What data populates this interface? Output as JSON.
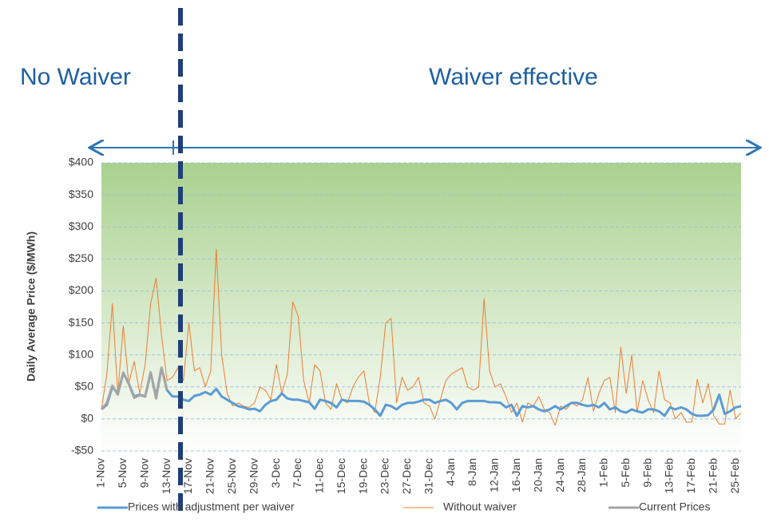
{
  "chart_data": {
    "type": "line",
    "annotations": [
      "No Waiver",
      "Waiver effective"
    ],
    "ylabel": "Daily Average Price ($/MWh)",
    "ylim": [
      -50,
      400
    ],
    "yticks": [
      {
        "value": -50,
        "label": "-$50"
      },
      {
        "value": 0,
        "label": "$0"
      },
      {
        "value": 50,
        "label": "$50"
      },
      {
        "value": 100,
        "label": "$100"
      },
      {
        "value": 150,
        "label": "$150"
      },
      {
        "value": 200,
        "label": "$200"
      },
      {
        "value": 250,
        "label": "$250"
      },
      {
        "value": 300,
        "label": "$300"
      },
      {
        "value": 350,
        "label": "$350"
      },
      {
        "value": 400,
        "label": "$400"
      }
    ],
    "grid": true,
    "legend": "bottom",
    "categories": [
      "1-Nov",
      null,
      null,
      null,
      "5-Nov",
      null,
      null,
      null,
      "9-Nov",
      null,
      null,
      null,
      "13-Nov",
      null,
      null,
      null,
      "17-Nov",
      null,
      null,
      null,
      "21-Nov",
      null,
      null,
      null,
      "25-Nov",
      null,
      null,
      null,
      "29-Nov",
      null,
      null,
      null,
      "3-Dec",
      null,
      null,
      null,
      "7-Dec",
      null,
      null,
      null,
      "11-Dec",
      null,
      null,
      null,
      "15-Dec",
      null,
      null,
      null,
      "19-Dec",
      null,
      null,
      null,
      "23-Dec",
      null,
      null,
      null,
      "27-Dec",
      null,
      null,
      null,
      "31-Dec",
      null,
      null,
      null,
      "4-Jan",
      null,
      null,
      null,
      "8-Jan",
      null,
      null,
      null,
      "12-Jan",
      null,
      null,
      null,
      "16-Jan",
      null,
      null,
      null,
      "20-Jan",
      null,
      null,
      null,
      "24-Jan",
      null,
      null,
      null,
      "28-Jan",
      null,
      null,
      null,
      "1-Feb",
      null,
      null,
      null,
      "5-Feb",
      null,
      null,
      null,
      "9-Feb",
      null,
      null,
      null,
      "13-Feb",
      null,
      null,
      null,
      "17-Feb",
      null,
      null,
      null,
      "21-Feb",
      null,
      null,
      null,
      "25-Feb",
      null
    ],
    "series": [
      {
        "name": "Prices with adjustment per waiver",
        "color": "#5b9bd5",
        "width": 3,
        "values": [
          15,
          22,
          50,
          40,
          72,
          55,
          35,
          38,
          35,
          72,
          35,
          80,
          45,
          35,
          35,
          30,
          28,
          36,
          38,
          42,
          38,
          47,
          35,
          30,
          25,
          20,
          18,
          15,
          16,
          12,
          22,
          28,
          30,
          40,
          32,
          30,
          30,
          28,
          26,
          16,
          30,
          28,
          25,
          18,
          30,
          28,
          28,
          28,
          27,
          22,
          15,
          5,
          22,
          20,
          15,
          22,
          25,
          25,
          27,
          30,
          30,
          25,
          28,
          30,
          25,
          15,
          25,
          28,
          28,
          28,
          28,
          26,
          26,
          25,
          18,
          22,
          5,
          20,
          18,
          20,
          15,
          12,
          15,
          20,
          15,
          20,
          25,
          25,
          22,
          20,
          22,
          18,
          25,
          15,
          18,
          12,
          10,
          15,
          12,
          10,
          15,
          15,
          12,
          5,
          18,
          15,
          18,
          15,
          8,
          5,
          5,
          6,
          15,
          38,
          8,
          12,
          18,
          20
        ]
      },
      {
        "name": "Without waiver",
        "color": "#ed7d31",
        "width": 1,
        "values": [
          15,
          70,
          180,
          40,
          145,
          55,
          90,
          40,
          85,
          180,
          220,
          130,
          60,
          65,
          80,
          60,
          150,
          75,
          80,
          50,
          75,
          265,
          100,
          40,
          20,
          25,
          20,
          18,
          25,
          50,
          45,
          30,
          85,
          40,
          70,
          183,
          160,
          60,
          25,
          85,
          75,
          25,
          15,
          55,
          30,
          25,
          50,
          65,
          75,
          25,
          10,
          65,
          150,
          157,
          25,
          65,
          45,
          50,
          65,
          25,
          20,
          0,
          30,
          60,
          70,
          75,
          80,
          50,
          45,
          50,
          188,
          75,
          50,
          55,
          35,
          10,
          25,
          -5,
          25,
          20,
          35,
          15,
          10,
          -10,
          20,
          15,
          25,
          20,
          30,
          65,
          12,
          40,
          60,
          65,
          10,
          112,
          40,
          100,
          10,
          60,
          30,
          10,
          75,
          30,
          25,
          0,
          10,
          -5,
          -5,
          62,
          25,
          55,
          5,
          -8,
          -8,
          45,
          0,
          10
        ]
      },
      {
        "name": "Current Prices",
        "color": "#a5a5a5",
        "width": 3,
        "values": [
          15,
          25,
          52,
          38,
          72,
          55,
          33,
          37,
          35,
          73,
          32,
          80,
          45,
          null,
          null,
          null,
          null,
          null,
          null,
          null,
          null,
          null,
          null,
          null,
          null,
          null,
          null,
          null,
          null,
          null,
          null,
          null,
          null,
          null,
          null,
          null,
          null,
          null,
          null,
          null,
          null,
          null,
          null,
          null,
          null,
          null,
          null,
          null,
          null,
          null,
          null,
          null,
          null,
          null,
          null,
          null,
          null,
          null,
          null,
          null,
          null,
          null,
          null,
          null,
          null,
          null,
          null,
          null,
          null,
          null,
          null,
          null,
          null,
          null,
          null,
          null,
          null,
          null,
          null,
          null,
          null,
          null,
          null,
          null,
          null,
          null,
          null,
          null,
          null,
          null,
          null,
          null,
          null,
          null,
          null,
          null,
          null,
          null,
          null,
          null,
          null,
          null,
          null,
          null,
          null,
          null,
          null,
          null,
          null,
          null,
          null,
          null,
          null,
          null,
          null,
          null,
          null,
          null
        ]
      }
    ]
  }
}
